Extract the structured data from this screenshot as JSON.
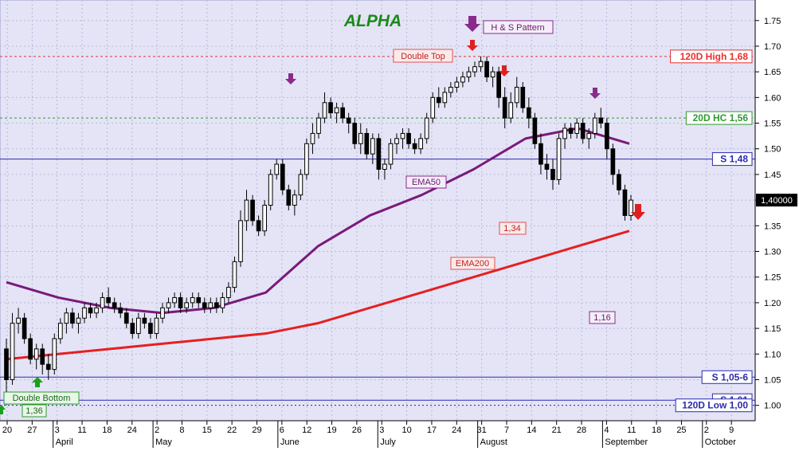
{
  "chart_data": {
    "type": "candlestick",
    "title": "ALPHA",
    "ylim": [
      0.97,
      1.79
    ],
    "y_ticks": [
      1.0,
      1.05,
      1.1,
      1.15,
      1.2,
      1.25,
      1.3,
      1.35,
      1.4,
      1.45,
      1.5,
      1.55,
      1.6,
      1.65,
      1.7,
      1.75
    ],
    "y_tick_labels": [
      "1.00",
      "1.05",
      "1.10",
      "1.15",
      "1.20",
      "1.25",
      "1.30",
      "1.35",
      "1.40",
      "1.45",
      "1.50",
      "1.55",
      "1.60",
      "1.65",
      "1.70",
      "1.75"
    ],
    "x_tick_labels": [
      "20",
      "27",
      "3",
      "11",
      "18",
      "24",
      "2",
      "8",
      "15",
      "22",
      "29",
      "6",
      "12",
      "19",
      "26",
      "3",
      "10",
      "17",
      "24",
      "31",
      "7",
      "14",
      "21",
      "28",
      "4",
      "11",
      "18",
      "25",
      "2",
      "9"
    ],
    "x_month_labels": [
      "April",
      "May",
      "June",
      "July",
      "August",
      "September",
      "October"
    ],
    "last_value_label": "1,40000",
    "last_value": 1.4,
    "grid": true,
    "horizontal_levels": [
      {
        "label": "120D High 1,68",
        "value": 1.68,
        "color": "#e83030"
      },
      {
        "label": "20D HC 1,56",
        "value": 1.56,
        "color": "#2f9a2f"
      },
      {
        "label": "S 1,48",
        "value": 1.48,
        "color": "#2b2bb0"
      },
      {
        "label": "S 1,05-6",
        "value": 1.055,
        "color": "#2b2bb0"
      },
      {
        "label": "S 1,01",
        "value": 1.01,
        "color": "#2b2bb0"
      },
      {
        "label": "120D Low 1,00",
        "value": 1.0,
        "color": "#2b2bb0"
      }
    ],
    "annotations": {
      "pattern": "H & S Pattern",
      "double_top": "Double Top",
      "double_bottom": "Double Bottom",
      "double_bottom_value": "1,36",
      "ema50": "EMA50",
      "ema200": "EMA200",
      "target_1": "1,34",
      "target_2": "1,16"
    },
    "ema200": [
      1.09,
      1.1,
      1.11,
      1.12,
      1.13,
      1.14,
      1.16,
      1.19,
      1.22,
      1.25,
      1.28,
      1.31,
      1.34
    ],
    "ema50": [
      1.24,
      1.21,
      1.19,
      1.18,
      1.19,
      1.22,
      1.31,
      1.37,
      1.41,
      1.46,
      1.52,
      1.54,
      1.51
    ],
    "ohlc": [
      [
        1.11,
        1.13,
        1.0,
        1.05
      ],
      [
        1.05,
        1.18,
        1.04,
        1.16
      ],
      [
        1.16,
        1.19,
        1.14,
        1.17
      ],
      [
        1.17,
        1.18,
        1.12,
        1.13
      ],
      [
        1.13,
        1.14,
        1.08,
        1.09
      ],
      [
        1.09,
        1.12,
        1.07,
        1.11
      ],
      [
        1.11,
        1.12,
        1.06,
        1.08
      ],
      [
        1.08,
        1.1,
        1.05,
        1.07
      ],
      [
        1.07,
        1.14,
        1.06,
        1.13
      ],
      [
        1.13,
        1.17,
        1.12,
        1.16
      ],
      [
        1.16,
        1.19,
        1.14,
        1.18
      ],
      [
        1.18,
        1.19,
        1.15,
        1.16
      ],
      [
        1.16,
        1.18,
        1.14,
        1.17
      ],
      [
        1.17,
        1.2,
        1.16,
        1.19
      ],
      [
        1.19,
        1.2,
        1.17,
        1.18
      ],
      [
        1.18,
        1.2,
        1.17,
        1.19
      ],
      [
        1.19,
        1.22,
        1.18,
        1.21
      ],
      [
        1.21,
        1.23,
        1.19,
        1.2
      ],
      [
        1.2,
        1.21,
        1.18,
        1.19
      ],
      [
        1.19,
        1.2,
        1.17,
        1.18
      ],
      [
        1.18,
        1.19,
        1.15,
        1.16
      ],
      [
        1.16,
        1.17,
        1.13,
        1.14
      ],
      [
        1.14,
        1.18,
        1.13,
        1.17
      ],
      [
        1.17,
        1.18,
        1.15,
        1.16
      ],
      [
        1.16,
        1.17,
        1.13,
        1.14
      ],
      [
        1.14,
        1.18,
        1.13,
        1.17
      ],
      [
        1.17,
        1.2,
        1.16,
        1.19
      ],
      [
        1.19,
        1.21,
        1.18,
        1.2
      ],
      [
        1.2,
        1.22,
        1.19,
        1.21
      ],
      [
        1.21,
        1.22,
        1.18,
        1.19
      ],
      [
        1.19,
        1.21,
        1.18,
        1.2
      ],
      [
        1.2,
        1.22,
        1.19,
        1.21
      ],
      [
        1.21,
        1.22,
        1.19,
        1.2
      ],
      [
        1.2,
        1.21,
        1.18,
        1.19
      ],
      [
        1.19,
        1.21,
        1.18,
        1.2
      ],
      [
        1.2,
        1.21,
        1.18,
        1.19
      ],
      [
        1.19,
        1.22,
        1.18,
        1.21
      ],
      [
        1.21,
        1.24,
        1.2,
        1.23
      ],
      [
        1.23,
        1.29,
        1.22,
        1.28
      ],
      [
        1.28,
        1.38,
        1.27,
        1.36
      ],
      [
        1.36,
        1.42,
        1.34,
        1.4
      ],
      [
        1.4,
        1.41,
        1.35,
        1.36
      ],
      [
        1.36,
        1.37,
        1.33,
        1.34
      ],
      [
        1.34,
        1.4,
        1.33,
        1.39
      ],
      [
        1.39,
        1.46,
        1.38,
        1.45
      ],
      [
        1.45,
        1.48,
        1.44,
        1.47
      ],
      [
        1.47,
        1.48,
        1.41,
        1.42
      ],
      [
        1.42,
        1.43,
        1.38,
        1.39
      ],
      [
        1.39,
        1.42,
        1.37,
        1.41
      ],
      [
        1.41,
        1.46,
        1.4,
        1.45
      ],
      [
        1.45,
        1.52,
        1.44,
        1.51
      ],
      [
        1.51,
        1.55,
        1.49,
        1.53
      ],
      [
        1.53,
        1.57,
        1.52,
        1.56
      ],
      [
        1.56,
        1.61,
        1.55,
        1.59
      ],
      [
        1.59,
        1.6,
        1.56,
        1.57
      ],
      [
        1.57,
        1.59,
        1.55,
        1.58
      ],
      [
        1.58,
        1.59,
        1.55,
        1.56
      ],
      [
        1.56,
        1.57,
        1.53,
        1.55
      ],
      [
        1.55,
        1.56,
        1.5,
        1.51
      ],
      [
        1.51,
        1.55,
        1.49,
        1.53
      ],
      [
        1.53,
        1.54,
        1.48,
        1.49
      ],
      [
        1.49,
        1.53,
        1.47,
        1.52
      ],
      [
        1.52,
        1.53,
        1.44,
        1.46
      ],
      [
        1.46,
        1.48,
        1.44,
        1.47
      ],
      [
        1.47,
        1.52,
        1.46,
        1.51
      ],
      [
        1.51,
        1.53,
        1.49,
        1.52
      ],
      [
        1.52,
        1.54,
        1.5,
        1.53
      ],
      [
        1.53,
        1.54,
        1.5,
        1.51
      ],
      [
        1.51,
        1.52,
        1.49,
        1.5
      ],
      [
        1.5,
        1.53,
        1.49,
        1.52
      ],
      [
        1.52,
        1.57,
        1.51,
        1.56
      ],
      [
        1.56,
        1.61,
        1.55,
        1.6
      ],
      [
        1.6,
        1.62,
        1.58,
        1.59
      ],
      [
        1.59,
        1.62,
        1.58,
        1.61
      ],
      [
        1.61,
        1.63,
        1.6,
        1.62
      ],
      [
        1.62,
        1.64,
        1.61,
        1.63
      ],
      [
        1.63,
        1.65,
        1.62,
        1.64
      ],
      [
        1.64,
        1.66,
        1.63,
        1.65
      ],
      [
        1.65,
        1.67,
        1.64,
        1.66
      ],
      [
        1.66,
        1.68,
        1.65,
        1.67
      ],
      [
        1.67,
        1.68,
        1.63,
        1.64
      ],
      [
        1.64,
        1.66,
        1.62,
        1.65
      ],
      [
        1.65,
        1.66,
        1.58,
        1.6
      ],
      [
        1.6,
        1.62,
        1.54,
        1.56
      ],
      [
        1.56,
        1.61,
        1.55,
        1.59
      ],
      [
        1.59,
        1.64,
        1.58,
        1.62
      ],
      [
        1.62,
        1.63,
        1.57,
        1.58
      ],
      [
        1.58,
        1.6,
        1.54,
        1.56
      ],
      [
        1.56,
        1.57,
        1.5,
        1.51
      ],
      [
        1.51,
        1.53,
        1.45,
        1.47
      ],
      [
        1.47,
        1.49,
        1.44,
        1.46
      ],
      [
        1.46,
        1.48,
        1.42,
        1.44
      ],
      [
        1.44,
        1.53,
        1.43,
        1.52
      ],
      [
        1.52,
        1.55,
        1.5,
        1.54
      ],
      [
        1.54,
        1.55,
        1.52,
        1.53
      ],
      [
        1.53,
        1.56,
        1.52,
        1.55
      ],
      [
        1.55,
        1.56,
        1.51,
        1.52
      ],
      [
        1.52,
        1.54,
        1.5,
        1.53
      ],
      [
        1.53,
        1.57,
        1.52,
        1.56
      ],
      [
        1.56,
        1.58,
        1.54,
        1.55
      ],
      [
        1.55,
        1.56,
        1.48,
        1.5
      ],
      [
        1.5,
        1.51,
        1.43,
        1.45
      ],
      [
        1.45,
        1.46,
        1.41,
        1.42
      ],
      [
        1.42,
        1.43,
        1.36,
        1.37
      ],
      [
        1.37,
        1.41,
        1.36,
        1.4
      ]
    ]
  }
}
